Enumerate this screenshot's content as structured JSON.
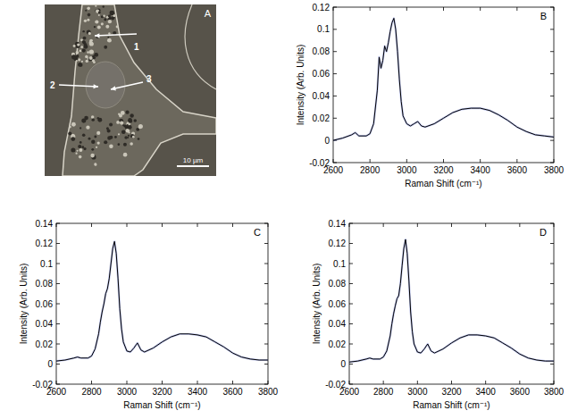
{
  "image_panel": {
    "panel": "A",
    "arrow_labels": [
      "1",
      "2",
      "3"
    ],
    "scale_bar": "10 µm"
  },
  "chart_data": [
    {
      "type": "line",
      "panel": "B",
      "x_label": "Raman Shift (cm⁻¹)",
      "y_label": "Intensity (Arb. Units)",
      "x": [
        2600,
        2650,
        2700,
        2720,
        2740,
        2780,
        2800,
        2820,
        2840,
        2850,
        2860,
        2870,
        2880,
        2890,
        2900,
        2910,
        2920,
        2930,
        2940,
        2950,
        2960,
        2970,
        2980,
        3000,
        3020,
        3040,
        3060,
        3080,
        3100,
        3150,
        3200,
        3250,
        3300,
        3350,
        3400,
        3450,
        3500,
        3550,
        3600,
        3650,
        3700,
        3750,
        3800
      ],
      "xlim": [
        2600,
        3800
      ],
      "xticks": [
        2600,
        2800,
        3000,
        3200,
        3400,
        3600,
        3800
      ],
      "ylim": [
        -0.02,
        0.12
      ],
      "yticks": [
        -0.02,
        0,
        0.02,
        0.04,
        0.06,
        0.08,
        0.1,
        0.12
      ],
      "series": [
        {
          "color": "#000000",
          "values": [
            0.0,
            0.002,
            0.005,
            0.007,
            0.004,
            0.004,
            0.006,
            0.015,
            0.045,
            0.075,
            0.065,
            0.072,
            0.085,
            0.08,
            0.088,
            0.098,
            0.106,
            0.11,
            0.1,
            0.08,
            0.055,
            0.035,
            0.022,
            0.015,
            0.013,
            0.015,
            0.017,
            0.013,
            0.012,
            0.015,
            0.02,
            0.025,
            0.028,
            0.029,
            0.029,
            0.027,
            0.023,
            0.018,
            0.012,
            0.008,
            0.005,
            0.004,
            0.003
          ]
        }
      ]
    },
    {
      "type": "line",
      "panel": "C",
      "x_label": "Raman Shift (cm⁻¹)",
      "y_label": "Intensity (Arb. Units)",
      "x": [
        2600,
        2650,
        2700,
        2720,
        2740,
        2780,
        2800,
        2820,
        2840,
        2850,
        2860,
        2870,
        2880,
        2890,
        2900,
        2910,
        2920,
        2930,
        2940,
        2950,
        2960,
        2970,
        2980,
        3000,
        3020,
        3040,
        3060,
        3080,
        3100,
        3150,
        3200,
        3250,
        3300,
        3350,
        3400,
        3450,
        3500,
        3550,
        3600,
        3650,
        3700,
        3750,
        3800
      ],
      "xlim": [
        2600,
        3800
      ],
      "xticks": [
        2600,
        2800,
        3000,
        3200,
        3400,
        3600,
        3800
      ],
      "ylim": [
        -0.02,
        0.14
      ],
      "yticks": [
        -0.02,
        0,
        0.02,
        0.04,
        0.06,
        0.08,
        0.1,
        0.12,
        0.14
      ],
      "series": [
        {
          "color": "#000000",
          "values": [
            0.003,
            0.004,
            0.006,
            0.007,
            0.006,
            0.006,
            0.008,
            0.015,
            0.03,
            0.042,
            0.052,
            0.06,
            0.07,
            0.075,
            0.085,
            0.1,
            0.115,
            0.122,
            0.11,
            0.085,
            0.055,
            0.035,
            0.022,
            0.013,
            0.012,
            0.016,
            0.021,
            0.014,
            0.012,
            0.016,
            0.022,
            0.027,
            0.03,
            0.03,
            0.029,
            0.027,
            0.022,
            0.017,
            0.011,
            0.007,
            0.005,
            0.004,
            0.004
          ]
        }
      ]
    },
    {
      "type": "line",
      "panel": "D",
      "x_label": "Raman Shift (cm⁻¹)",
      "y_label": "Intensity (Arb. Units)",
      "x": [
        2600,
        2650,
        2700,
        2720,
        2740,
        2780,
        2800,
        2820,
        2840,
        2850,
        2860,
        2870,
        2880,
        2890,
        2900,
        2910,
        2920,
        2930,
        2940,
        2950,
        2960,
        2970,
        2980,
        3000,
        3020,
        3040,
        3060,
        3080,
        3100,
        3150,
        3200,
        3250,
        3300,
        3350,
        3400,
        3450,
        3500,
        3550,
        3600,
        3650,
        3700,
        3750,
        3800
      ],
      "xlim": [
        2600,
        3800
      ],
      "xticks": [
        2600,
        2800,
        3000,
        3200,
        3400,
        3600,
        3800
      ],
      "ylim": [
        -0.02,
        0.14
      ],
      "yticks": [
        -0.02,
        0,
        0.02,
        0.04,
        0.06,
        0.08,
        0.1,
        0.12,
        0.14
      ],
      "series": [
        {
          "color": "#000000",
          "values": [
            0.002,
            0.003,
            0.005,
            0.006,
            0.005,
            0.005,
            0.007,
            0.013,
            0.028,
            0.04,
            0.05,
            0.058,
            0.065,
            0.068,
            0.08,
            0.098,
            0.115,
            0.124,
            0.11,
            0.083,
            0.052,
            0.032,
            0.02,
            0.012,
            0.011,
            0.015,
            0.02,
            0.013,
            0.011,
            0.015,
            0.021,
            0.026,
            0.029,
            0.029,
            0.028,
            0.026,
            0.021,
            0.016,
            0.01,
            0.006,
            0.004,
            0.003,
            0.003
          ]
        }
      ]
    }
  ]
}
